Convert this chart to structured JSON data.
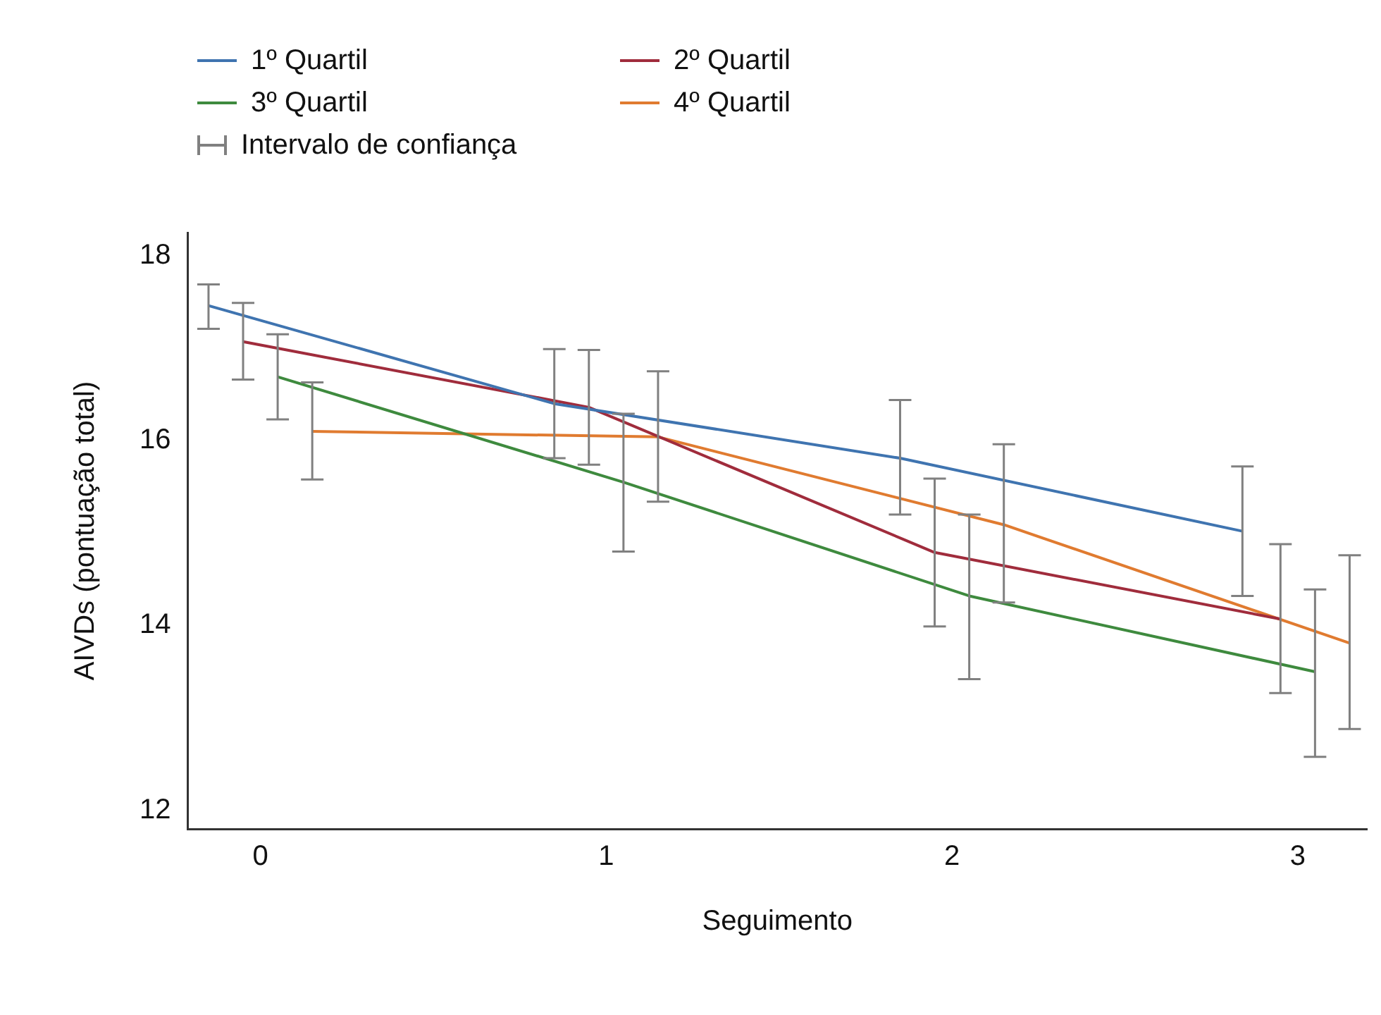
{
  "chart_data": {
    "type": "line",
    "xlabel": "Seguimento",
    "ylabel": "AIVDs (pontuação total)",
    "xlim": [
      -0.21,
      3.2
    ],
    "xticks": [
      0,
      1,
      2,
      3
    ],
    "ylim": [
      11.8,
      18.25
    ],
    "yticks": [
      12,
      14,
      16,
      18
    ],
    "grid": false,
    "legend": "top left",
    "marker": "none",
    "line_style": "solid",
    "annotations": [
      "Intervalo de confiança"
    ],
    "series": [
      {
        "name": "1º Quartil",
        "color": "#3f74b0",
        "x": [
          -0.15,
          0.85,
          1.85,
          2.84
        ],
        "values": [
          17.46,
          16.4,
          15.81,
          15.02
        ],
        "errors": [
          [
            17.21,
            17.69
          ],
          [
            15.81,
            16.99
          ],
          [
            15.2,
            16.44
          ],
          [
            14.32,
            15.72
          ]
        ]
      },
      {
        "name": "2º Quartil",
        "color": "#a02c3c",
        "x": [
          -0.05,
          0.95,
          1.95,
          2.95
        ],
        "values": [
          17.07,
          16.36,
          14.79,
          14.07
        ],
        "errors": [
          [
            16.66,
            17.49
          ],
          [
            15.74,
            16.98
          ],
          [
            13.99,
            15.59
          ],
          [
            13.27,
            14.88
          ]
        ]
      },
      {
        "name": "3º Quartil",
        "color": "#3e8a3e",
        "x": [
          0.05,
          1.05,
          2.05,
          3.05
        ],
        "values": [
          16.69,
          15.55,
          14.32,
          13.5
        ],
        "errors": [
          [
            16.23,
            17.15
          ],
          [
            14.8,
            16.29
          ],
          [
            13.42,
            15.2
          ],
          [
            12.58,
            14.39
          ]
        ]
      },
      {
        "name": "4º Quartil",
        "color": "#e07b30",
        "x": [
          0.15,
          1.15,
          2.15,
          3.15
        ],
        "values": [
          16.1,
          16.04,
          15.09,
          13.81
        ],
        "errors": [
          [
            15.58,
            16.63
          ],
          [
            15.34,
            16.75
          ],
          [
            14.25,
            15.96
          ],
          [
            12.88,
            14.76
          ]
        ]
      }
    ]
  }
}
